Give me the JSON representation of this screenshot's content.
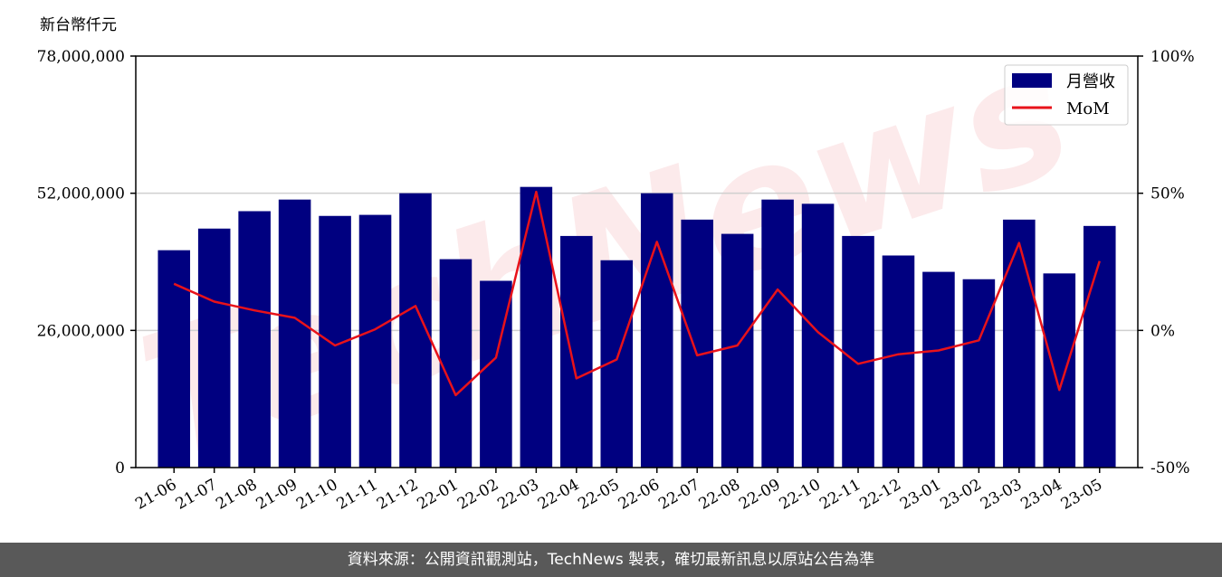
{
  "chart_data": {
    "type": "bar",
    "title": "",
    "ylabel": "新台幣仟元",
    "xlabel": "",
    "categories": [
      "21-06",
      "21-07",
      "21-08",
      "21-09",
      "21-10",
      "21-11",
      "21-12",
      "22-01",
      "22-02",
      "22-03",
      "22-04",
      "22-05",
      "22-06",
      "22-07",
      "22-08",
      "22-09",
      "22-10",
      "22-11",
      "22-12",
      "23-01",
      "23-02",
      "23-03",
      "23-04",
      "23-05"
    ],
    "series": [
      {
        "name": "月營收",
        "kind": "bar",
        "axis": "left",
        "color": "#000080",
        "values": [
          41200000,
          45300000,
          48600000,
          50800000,
          47700000,
          47900000,
          52000000,
          39500000,
          35400000,
          53200000,
          43900000,
          39300000,
          52000000,
          47000000,
          44300000,
          50800000,
          50000000,
          43900000,
          40200000,
          37100000,
          35700000,
          47000000,
          36800000,
          45800000
        ]
      },
      {
        "name": "MoM",
        "kind": "line",
        "axis": "right",
        "color": "#e8121a",
        "values": [
          17,
          10.5,
          7.3,
          4.6,
          -5.5,
          0.4,
          8.9,
          -23.6,
          -9.9,
          50.5,
          -17.5,
          -10.6,
          32.3,
          -9.1,
          -5.5,
          14.9,
          -0.6,
          -12.2,
          -8.7,
          -7.3,
          -3.6,
          31.9,
          -21.7,
          25.3
        ]
      }
    ],
    "y_left": {
      "ylim": [
        0,
        78000000
      ],
      "ticks": [
        "0",
        "26,000,000",
        "52,000,000",
        "78,000,000"
      ]
    },
    "y_right": {
      "ylim": [
        -50,
        100
      ],
      "ticks": [
        "-50%",
        "0%",
        "50%",
        "100%"
      ]
    },
    "grid": "horizontal",
    "legend_position": "top-right",
    "watermark": "TechNews",
    "source_note": "資料來源：公開資訊觀測站，TechNews 製表，確切最新訊息以原站公告為準"
  }
}
